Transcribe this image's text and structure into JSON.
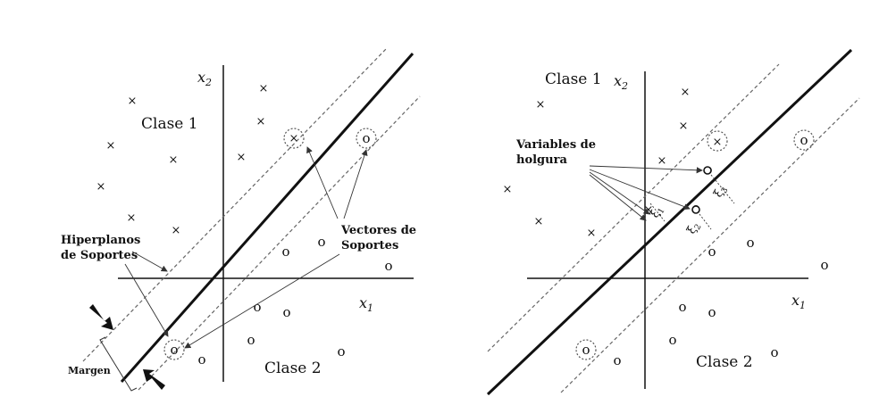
{
  "panel_left": {
    "axis_x_label": "x",
    "axis_x_sub": "1",
    "axis_y_label": "x",
    "axis_y_sub": "2",
    "class1_label": "Clase 1",
    "class2_label": "Clase 2",
    "support_hyperplanes_line1": "Hiperplanos",
    "support_hyperplanes_line2": "de Soportes",
    "support_vectors_line1": "Vectores de",
    "support_vectors_line2": "Soportes",
    "margin_label": "Margen",
    "cross_glyph": "×",
    "circle_glyph": "o"
  },
  "panel_right": {
    "axis_x_label": "x",
    "axis_x_sub": "1",
    "axis_y_label": "x",
    "axis_y_sub": "2",
    "class1_label": "Clase 1",
    "class2_label": "Clase 2",
    "slack_line1": "Variables de",
    "slack_line2": "holgura",
    "xi_symbol": "ξ",
    "xi1_sub": "1",
    "xi2_sub": "2",
    "xi3_sub": "3",
    "cross_glyph": "×",
    "circle_glyph": "o"
  },
  "colors": {
    "ink": "#111111",
    "dashed": "#666666",
    "dotted_circle": "#555555"
  }
}
